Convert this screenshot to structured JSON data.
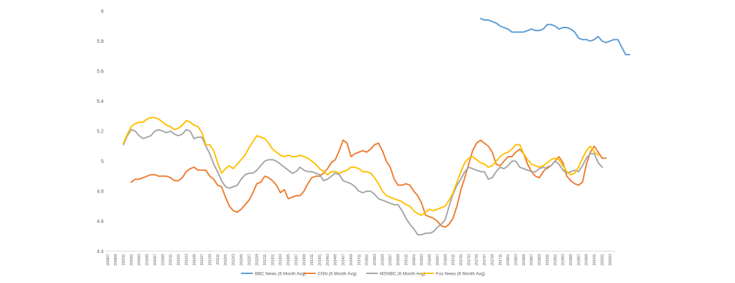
{
  "chart_data": {
    "type": "line",
    "title": "",
    "xlabel": "",
    "ylabel": "",
    "ylim": [
      4.4,
      6
    ],
    "y_ticks": [
      "6",
      "5.8",
      "5.6",
      "5.4",
      "5.2",
      "5",
      "4.8",
      "4.6",
      "4.4"
    ],
    "x_labels": [
      "200907",
      "200909",
      "200911",
      "201001",
      "201003",
      "201005",
      "201007",
      "201009",
      "201011",
      "201101",
      "201103",
      "201105",
      "201107",
      "201109",
      "201111",
      "201201",
      "201203",
      "201205",
      "201207",
      "201209",
      "201211",
      "201301",
      "201303",
      "201305",
      "201307",
      "201309",
      "201311",
      "201401",
      "201403",
      "201405",
      "201407",
      "201409",
      "201411",
      "201501",
      "201503",
      "201505",
      "201507",
      "201509",
      "201511",
      "201601",
      "201603",
      "201605",
      "201607",
      "201609",
      "201611",
      "201701",
      "201703",
      "201705",
      "201707",
      "201709",
      "201711",
      "201801",
      "201803",
      "201805",
      "201807",
      "201809",
      "201811",
      "201901",
      "201903",
      "201905",
      "201907",
      "201909",
      "201911",
      "202001",
      "202003"
    ],
    "legend_position": "bottom",
    "grid": false,
    "series": [
      {
        "name": "BBC News (6 Month Avg)",
        "color": "#5b9bd5",
        "start_month": 95,
        "values": [
          5.95,
          5.94,
          5.94,
          5.93,
          5.92,
          5.9,
          5.89,
          5.88,
          5.86,
          5.86,
          5.86,
          5.86,
          5.87,
          5.88,
          5.87,
          5.87,
          5.88,
          5.91,
          5.91,
          5.9,
          5.88,
          5.89,
          5.89,
          5.88,
          5.86,
          5.82,
          5.81,
          5.81,
          5.8,
          5.81,
          5.83,
          5.8,
          5.79,
          5.8,
          5.81,
          5.81,
          5.76,
          5.71,
          5.71
        ]
      },
      {
        "name": "CNN (6 Month Avg)",
        "color": "#ed7d31",
        "start_month": 6,
        "values": [
          4.86,
          4.88,
          4.88,
          4.89,
          4.9,
          4.91,
          4.91,
          4.9,
          4.9,
          4.9,
          4.89,
          4.87,
          4.87,
          4.89,
          4.93,
          4.95,
          4.96,
          4.94,
          4.94,
          4.94,
          4.9,
          4.88,
          4.84,
          4.83,
          4.76,
          4.7,
          4.67,
          4.66,
          4.68,
          4.71,
          4.74,
          4.79,
          4.85,
          4.86,
          4.9,
          4.89,
          4.87,
          4.84,
          4.79,
          4.81,
          4.75,
          4.76,
          4.77,
          4.77,
          4.8,
          4.85,
          4.89,
          4.9,
          4.9,
          4.92,
          4.95,
          4.99,
          5.01,
          5.07,
          5.14,
          5.12,
          5.03,
          5.05,
          5.06,
          5.07,
          5.06,
          5.08,
          5.11,
          5.12,
          5.07,
          5.0,
          4.96,
          4.88,
          4.84,
          4.84,
          4.85,
          4.84,
          4.8,
          4.77,
          4.72,
          4.64,
          4.63,
          4.62,
          4.6,
          4.57,
          4.56,
          4.58,
          4.62,
          4.7,
          4.81,
          4.89,
          4.98,
          5.07,
          5.12,
          5.14,
          5.12,
          5.1,
          5.06,
          4.98,
          4.97,
          5.0,
          5.03,
          5.03,
          5.06,
          5.08,
          5.05,
          4.98,
          4.93,
          4.9,
          4.89,
          4.93,
          4.96,
          4.97,
          5.0,
          5.03,
          4.99,
          4.9,
          4.87,
          4.85,
          4.84,
          4.86,
          4.98,
          5.06,
          5.1,
          5.06,
          5.02,
          5.02
        ]
      },
      {
        "name": "MSNBC (6 Month Avg)",
        "color": "#a5a5a5",
        "start_month": 4,
        "values": [
          5.11,
          5.17,
          5.21,
          5.2,
          5.17,
          5.15,
          5.16,
          5.17,
          5.2,
          5.21,
          5.2,
          5.19,
          5.2,
          5.18,
          5.17,
          5.18,
          5.21,
          5.2,
          5.15,
          5.16,
          5.16,
          5.1,
          5.05,
          4.98,
          4.93,
          4.87,
          4.83,
          4.82,
          4.83,
          4.84,
          4.88,
          4.91,
          4.92,
          4.92,
          4.94,
          4.97,
          5.0,
          5.01,
          5.01,
          5.0,
          4.98,
          4.96,
          4.94,
          4.92,
          4.93,
          4.96,
          4.94,
          4.93,
          4.93,
          4.92,
          4.91,
          4.87,
          4.88,
          4.9,
          4.92,
          4.91,
          4.87,
          4.86,
          4.85,
          4.83,
          4.8,
          4.79,
          4.8,
          4.8,
          4.78,
          4.75,
          4.74,
          4.73,
          4.72,
          4.71,
          4.71,
          4.67,
          4.62,
          4.58,
          4.55,
          4.51,
          4.51,
          4.52,
          4.52,
          4.53,
          4.56,
          4.58,
          4.61,
          4.7,
          4.78,
          4.84,
          4.88,
          4.93,
          4.96,
          4.95,
          4.94,
          4.93,
          4.93,
          4.88,
          4.89,
          4.93,
          4.96,
          4.95,
          4.97,
          5.0,
          5.0,
          4.96,
          4.95,
          4.94,
          4.93,
          4.93,
          4.95,
          4.96,
          4.95,
          4.97,
          5.0,
          4.98,
          4.94,
          4.92,
          4.93,
          4.94,
          4.93,
          4.97,
          5.02,
          5.05,
          5.05,
          4.99,
          4.96
        ]
      },
      {
        "name": "Fox News (6 Month Avg)",
        "color": "#ffc000",
        "start_month": 4,
        "values": [
          5.12,
          5.18,
          5.23,
          5.25,
          5.26,
          5.26,
          5.28,
          5.29,
          5.29,
          5.28,
          5.26,
          5.24,
          5.23,
          5.21,
          5.22,
          5.24,
          5.27,
          5.26,
          5.24,
          5.23,
          5.19,
          5.11,
          5.11,
          5.07,
          4.99,
          4.92,
          4.95,
          4.97,
          4.95,
          4.98,
          5.01,
          5.04,
          5.09,
          5.13,
          5.17,
          5.16,
          5.15,
          5.12,
          5.08,
          5.06,
          5.04,
          5.03,
          5.04,
          5.03,
          5.03,
          5.04,
          5.03,
          5.02,
          5.0,
          4.98,
          4.95,
          4.93,
          4.91,
          4.93,
          4.93,
          4.92,
          4.93,
          4.94,
          4.96,
          4.96,
          4.95,
          4.93,
          4.93,
          4.92,
          4.89,
          4.85,
          4.8,
          4.77,
          4.76,
          4.75,
          4.74,
          4.73,
          4.71,
          4.7,
          4.67,
          4.65,
          4.64,
          4.66,
          4.68,
          4.67,
          4.68,
          4.69,
          4.7,
          4.74,
          4.79,
          4.86,
          4.93,
          4.99,
          5.02,
          5.03,
          5.01,
          4.99,
          4.98,
          4.96,
          4.97,
          5.0,
          5.03,
          5.05,
          5.06,
          5.08,
          5.11,
          5.11,
          5.05,
          5.01,
          4.98,
          4.97,
          4.96,
          4.97,
          4.99,
          5.01,
          5.02,
          5.01,
          4.97,
          4.93,
          4.91,
          4.92,
          4.96,
          5.02,
          5.07,
          5.1,
          5.06,
          5.04
        ]
      }
    ]
  }
}
